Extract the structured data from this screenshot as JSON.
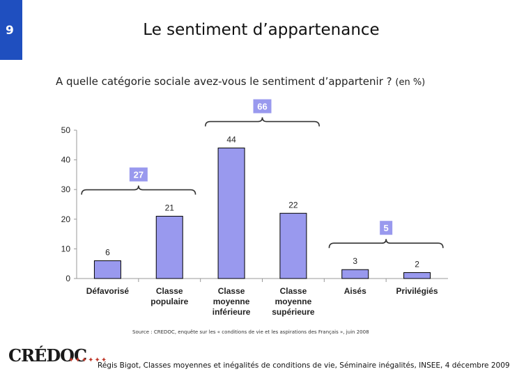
{
  "page": {
    "number": "9",
    "title": "Le sentiment d’appartenance"
  },
  "subtitle": {
    "text": "A quelle catégorie sociale avez-vous le sentiment d’appartenir ?",
    "unit": "(en %)"
  },
  "chart_data": {
    "type": "bar",
    "title": "",
    "xlabel": "",
    "ylabel": "",
    "ylim": [
      0,
      50
    ],
    "yticks": [
      0,
      10,
      20,
      30,
      40,
      50
    ],
    "bar_color": "#9999ee",
    "group_color": "#9999ee",
    "categories": [
      [
        "Défavorisé"
      ],
      [
        "Classe",
        "populaire"
      ],
      [
        "Classe",
        "moyenne",
        "inférieure"
      ],
      [
        "Classe",
        "moyenne",
        "supérieure"
      ],
      [
        "Aisés"
      ],
      [
        "Privilégiés"
      ]
    ],
    "values": [
      6,
      21,
      44,
      22,
      3,
      2
    ],
    "groups": [
      {
        "label": "27",
        "from": 0,
        "to": 1
      },
      {
        "label": "66",
        "from": 2,
        "to": 3
      },
      {
        "label": "5",
        "from": 4,
        "to": 5
      }
    ]
  },
  "source": "Source : CREDOC, enquête sur les « conditions de vie et les aspirations des Français », juin 2008",
  "logo": {
    "text": "CRÉDOC",
    "figures": "✦✦✦✦✦✦"
  },
  "footer": "Régis Bigot, Classes moyennes et inégalités de conditions de vie, Séminaire inégalités, INSEE, 4 décembre 2009",
  "colors": {
    "accent": "#1f4fbf",
    "bar": "#9999ee",
    "bar_stroke": "#000000"
  }
}
